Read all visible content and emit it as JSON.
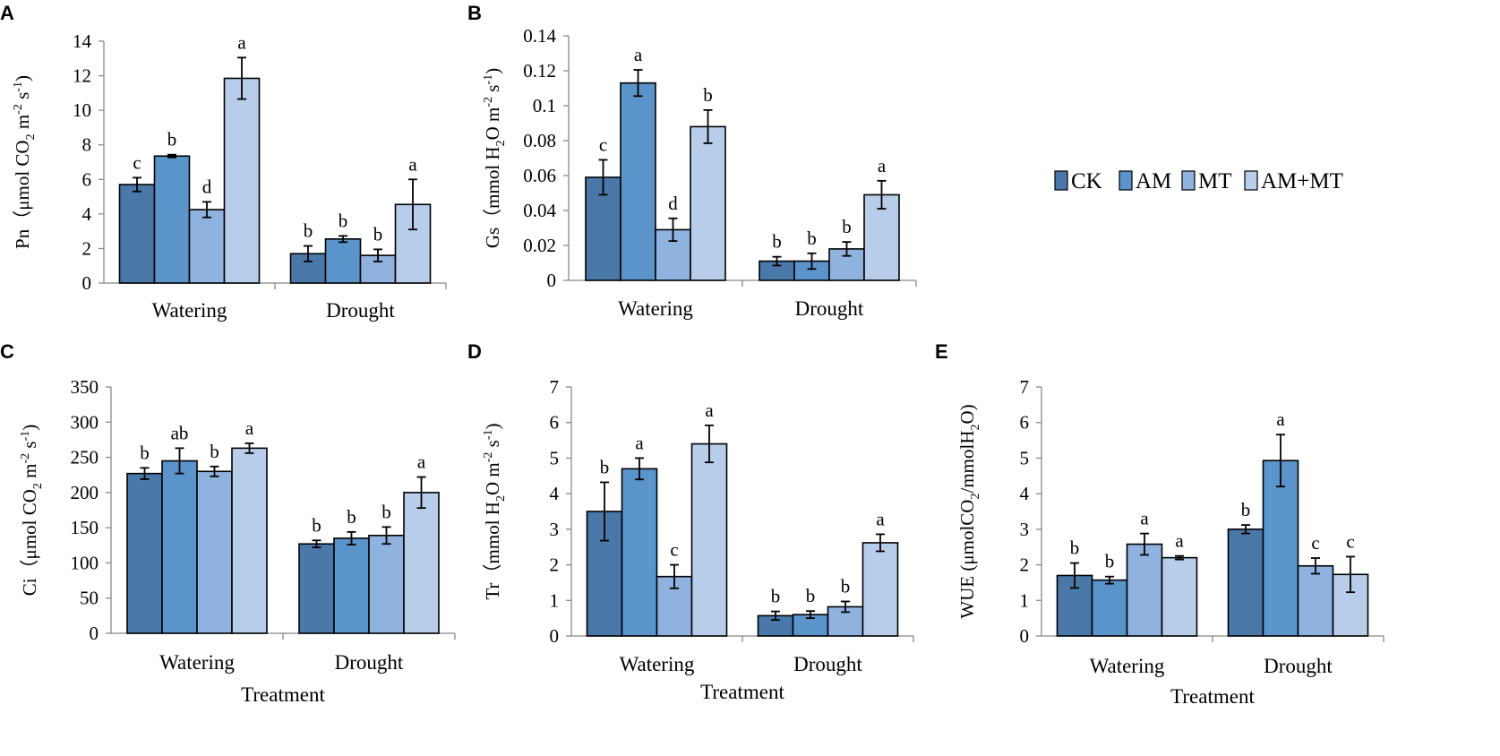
{
  "chart_data": [
    {
      "type": "bar",
      "panel": "A",
      "title": "",
      "ylabel": {
        "pre": "Pn（μmol CO",
        "sub": "2",
        "mid": " m",
        "sup1": "-2",
        "mid2": " s",
        "sup2": "-1",
        "post": ")"
      },
      "xlabel": "",
      "categories": [
        "Watering",
        "Drought"
      ],
      "ylim": [
        0,
        14
      ],
      "ystep": 2,
      "yticks": [
        "0",
        "2",
        "4",
        "6",
        "8",
        "10",
        "12",
        "14"
      ],
      "series": [
        {
          "name": "CK",
          "values": [
            5.7,
            1.7
          ],
          "errors": [
            0.4,
            0.45
          ],
          "letters": [
            "c",
            "b"
          ]
        },
        {
          "name": "AM",
          "values": [
            7.35,
            2.55
          ],
          "errors": [
            0.08,
            0.18
          ],
          "letters": [
            "b",
            "b"
          ]
        },
        {
          "name": "MT",
          "values": [
            4.25,
            1.6
          ],
          "errors": [
            0.45,
            0.35
          ],
          "letters": [
            "d",
            "b"
          ]
        },
        {
          "name": "AM+MT",
          "values": [
            11.85,
            4.55
          ],
          "errors": [
            1.2,
            1.45
          ],
          "letters": [
            "a",
            "a"
          ]
        }
      ]
    },
    {
      "type": "bar",
      "panel": "B",
      "title": "",
      "ylabel": {
        "pre": "Gs（mmol H",
        "sub": "2",
        "mid": "O m",
        "sup1": "-2",
        "mid2": " s",
        "sup2": "-1",
        "post": ")"
      },
      "xlabel": "",
      "categories": [
        "Watering",
        "Drought"
      ],
      "ylim": [
        0,
        0.14
      ],
      "ystep": 0.02,
      "yticks": [
        "0",
        "0.02",
        "0.04",
        "0.06",
        "0.08",
        "0.1",
        "0.12",
        "0.14"
      ],
      "series": [
        {
          "name": "CK",
          "values": [
            0.059,
            0.011
          ],
          "errors": [
            0.01,
            0.0025
          ],
          "letters": [
            "c",
            "b"
          ]
        },
        {
          "name": "AM",
          "values": [
            0.113,
            0.011
          ],
          "errors": [
            0.0075,
            0.0045
          ],
          "letters": [
            "a",
            "b"
          ]
        },
        {
          "name": "MT",
          "values": [
            0.029,
            0.018
          ],
          "errors": [
            0.0065,
            0.004
          ],
          "letters": [
            "d",
            "b"
          ]
        },
        {
          "name": "AM+MT",
          "values": [
            0.088,
            0.049
          ],
          "errors": [
            0.0095,
            0.008
          ],
          "letters": [
            "b",
            "a"
          ]
        }
      ]
    },
    {
      "type": "bar",
      "panel": "C",
      "title": "",
      "ylabel": {
        "pre": "Ci（μmol CO",
        "sub": "2",
        "mid": " m",
        "sup1": "-2",
        "mid2": " s",
        "sup2": "-1",
        "post": ")"
      },
      "xlabel": "Treatment",
      "categories": [
        "Watering",
        "Drought"
      ],
      "ylim": [
        0,
        350
      ],
      "ystep": 50,
      "yticks": [
        "0",
        "50",
        "100",
        "150",
        "200",
        "250",
        "300",
        "350"
      ],
      "series": [
        {
          "name": "CK",
          "values": [
            227,
            127
          ],
          "errors": [
            8,
            5
          ],
          "letters": [
            "b",
            "b"
          ]
        },
        {
          "name": "AM",
          "values": [
            245,
            135
          ],
          "errors": [
            18,
            9
          ],
          "letters": [
            "ab",
            "b"
          ]
        },
        {
          "name": "MT",
          "values": [
            230,
            139
          ],
          "errors": [
            7,
            12
          ],
          "letters": [
            "b",
            "b"
          ]
        },
        {
          "name": "AM+MT",
          "values": [
            263,
            200
          ],
          "errors": [
            7,
            22
          ],
          "letters": [
            "a",
            "a"
          ]
        }
      ]
    },
    {
      "type": "bar",
      "panel": "D",
      "title": "",
      "ylabel": {
        "pre": "Tr（mmol H",
        "sub": "2",
        "mid": "O m",
        "sup1": "-2",
        "mid2": " s",
        "sup2": "-1",
        "post": ")"
      },
      "xlabel": "Treatment",
      "categories": [
        "Watering",
        "Drought"
      ],
      "ylim": [
        0,
        7
      ],
      "ystep": 1,
      "yticks": [
        "0",
        "1",
        "2",
        "3",
        "4",
        "5",
        "6",
        "7"
      ],
      "series": [
        {
          "name": "CK",
          "values": [
            3.5,
            0.57
          ],
          "errors": [
            0.82,
            0.12
          ],
          "letters": [
            "b",
            "b"
          ]
        },
        {
          "name": "AM",
          "values": [
            4.7,
            0.6
          ],
          "errors": [
            0.3,
            0.1
          ],
          "letters": [
            "a",
            "b"
          ]
        },
        {
          "name": "MT",
          "values": [
            1.67,
            0.82
          ],
          "errors": [
            0.33,
            0.15
          ],
          "letters": [
            "c",
            "b"
          ]
        },
        {
          "name": "AM+MT",
          "values": [
            5.4,
            2.62
          ],
          "errors": [
            0.52,
            0.24
          ],
          "letters": [
            "a",
            "a"
          ]
        }
      ]
    },
    {
      "type": "bar",
      "panel": "E",
      "title": "",
      "ylabel": {
        "pre": "WUE (μmolCO",
        "sub": "2",
        "mid": "/mmolH",
        "sup1": "",
        "mid2": "",
        "sup2": "",
        "sub2": "2",
        "post": "O)"
      },
      "xlabel": "Treatment",
      "categories": [
        "Watering",
        "Drought"
      ],
      "ylim": [
        0,
        7
      ],
      "ystep": 1,
      "yticks": [
        "0",
        "1",
        "2",
        "3",
        "4",
        "5",
        "6",
        "7"
      ],
      "series": [
        {
          "name": "CK",
          "values": [
            1.7,
            3.0
          ],
          "errors": [
            0.35,
            0.12
          ],
          "letters": [
            "b",
            "b"
          ]
        },
        {
          "name": "AM",
          "values": [
            1.57,
            4.93
          ],
          "errors": [
            0.1,
            0.73
          ],
          "letters": [
            "b",
            "a"
          ]
        },
        {
          "name": "MT",
          "values": [
            2.58,
            1.97
          ],
          "errors": [
            0.3,
            0.22
          ],
          "letters": [
            "a",
            "c"
          ]
        },
        {
          "name": "AM+MT",
          "values": [
            2.2,
            1.73
          ],
          "errors": [
            0.05,
            0.5
          ],
          "letters": [
            "a",
            "c"
          ]
        }
      ]
    }
  ],
  "legend": {
    "entries": [
      "CK",
      "AM",
      "MT",
      "AM+MT"
    ]
  },
  "colors": {
    "series": [
      "#4a78a9",
      "#5b93cb",
      "#8fb2df",
      "#b7cde9"
    ],
    "axis": "#888888",
    "bar_stroke": "#000000",
    "text": "#000000"
  }
}
